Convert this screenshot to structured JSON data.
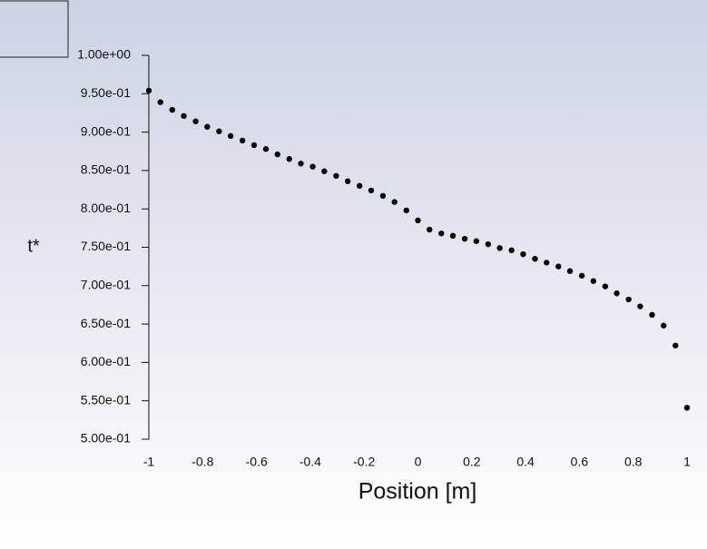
{
  "chart_data": {
    "type": "scatter",
    "x_label": "Position [m]",
    "y_label": "t*",
    "x": [
      -1,
      -0.957,
      -0.913,
      -0.87,
      -0.826,
      -0.783,
      -0.739,
      -0.696,
      -0.652,
      -0.609,
      -0.565,
      -0.522,
      -0.478,
      -0.435,
      -0.391,
      -0.348,
      -0.304,
      -0.261,
      -0.217,
      -0.174,
      -0.13,
      -0.087,
      -0.043,
      0,
      0.043,
      0.087,
      0.13,
      0.174,
      0.217,
      0.261,
      0.304,
      0.348,
      0.391,
      0.435,
      0.478,
      0.522,
      0.565,
      0.609,
      0.652,
      0.696,
      0.739,
      0.783,
      0.826,
      0.87,
      0.913,
      0.957,
      1
    ],
    "values": [
      0.954,
      0.939,
      0.929,
      0.921,
      0.914,
      0.907,
      0.901,
      0.895,
      0.889,
      0.883,
      0.878,
      0.871,
      0.865,
      0.859,
      0.855,
      0.849,
      0.843,
      0.836,
      0.83,
      0.824,
      0.817,
      0.809,
      0.798,
      0.785,
      0.773,
      0.768,
      0.765,
      0.761,
      0.758,
      0.754,
      0.749,
      0.746,
      0.741,
      0.735,
      0.73,
      0.725,
      0.719,
      0.713,
      0.706,
      0.699,
      0.69,
      0.682,
      0.673,
      0.662,
      0.648,
      0.622,
      0.541
    ],
    "color": "#000000",
    "xlim": [
      -1,
      1
    ],
    "xticks": [
      -1,
      -0.8,
      -0.6,
      -0.4,
      -0.2,
      0,
      0.2,
      0.4,
      0.6,
      0.8,
      1
    ],
    "ylim": [
      0.5,
      1
    ],
    "yticks": [
      {
        "value": 0.5,
        "label": "5.00e-01"
      },
      {
        "value": 0.55,
        "label": "5.50e-01"
      },
      {
        "value": 0.6,
        "label": "6.00e-01"
      },
      {
        "value": 0.65,
        "label": "6.50e-01"
      },
      {
        "value": 0.7,
        "label": "7.00e-01"
      },
      {
        "value": 0.75,
        "label": "7.50e-01"
      },
      {
        "value": 0.8,
        "label": "8.00e-01"
      },
      {
        "value": 0.85,
        "label": "8.50e-01"
      },
      {
        "value": 0.9,
        "label": "9.00e-01"
      },
      {
        "value": 0.95,
        "label": "9.50e-01"
      },
      {
        "value": 1,
        "label": "1.00e+00"
      }
    ]
  }
}
